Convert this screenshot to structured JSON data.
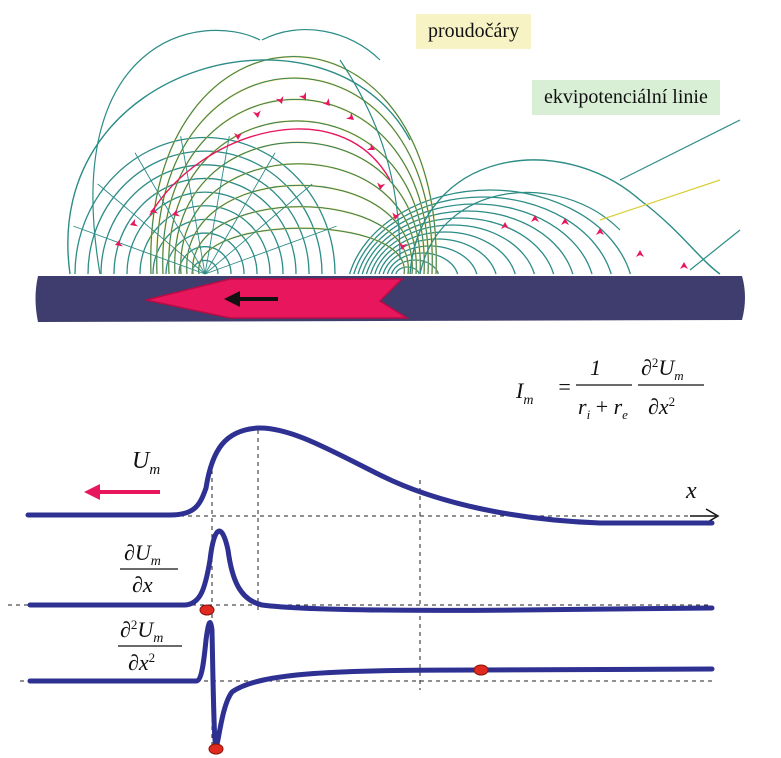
{
  "legend": {
    "streamlines": "proudočáry",
    "equipotentials": "ekvipotenciální linie"
  },
  "formula": {
    "lhs_main": "I",
    "lhs_sub": "m",
    "equals": "=",
    "frac1_num": "1",
    "frac1_den_a": "r",
    "frac1_den_a_sub": "i",
    "frac1_den_plus": " + ",
    "frac1_den_b": "r",
    "frac1_den_b_sub": "e",
    "frac2_num_d": "∂",
    "frac2_num_pow": "2",
    "frac2_num_U": "U",
    "frac2_num_sub": "m",
    "frac2_den_d": "∂x",
    "frac2_den_pow": "2"
  },
  "curves": {
    "um_label_main": "U",
    "um_label_sub": "m",
    "x_axis_label": "x",
    "d1_num_d": "∂U",
    "d1_num_sub": "m",
    "d1_den": "∂x",
    "d2_num_d": "∂",
    "d2_num_pow": "2",
    "d2_num_U": "U",
    "d2_num_sub": "m",
    "d2_den": "∂x",
    "d2_den_pow": "2"
  },
  "colors": {
    "curve": "#2e3192",
    "fiber": "#3e3d6e",
    "impulse": "#e8175d",
    "marker": "#e02a1f",
    "streamline": "#d9cf3a",
    "equipotential": "#2c8c86"
  },
  "icons": {
    "direction_arrow": "left-arrow-icon",
    "impulse_arrow": "left-arrow-icon"
  }
}
